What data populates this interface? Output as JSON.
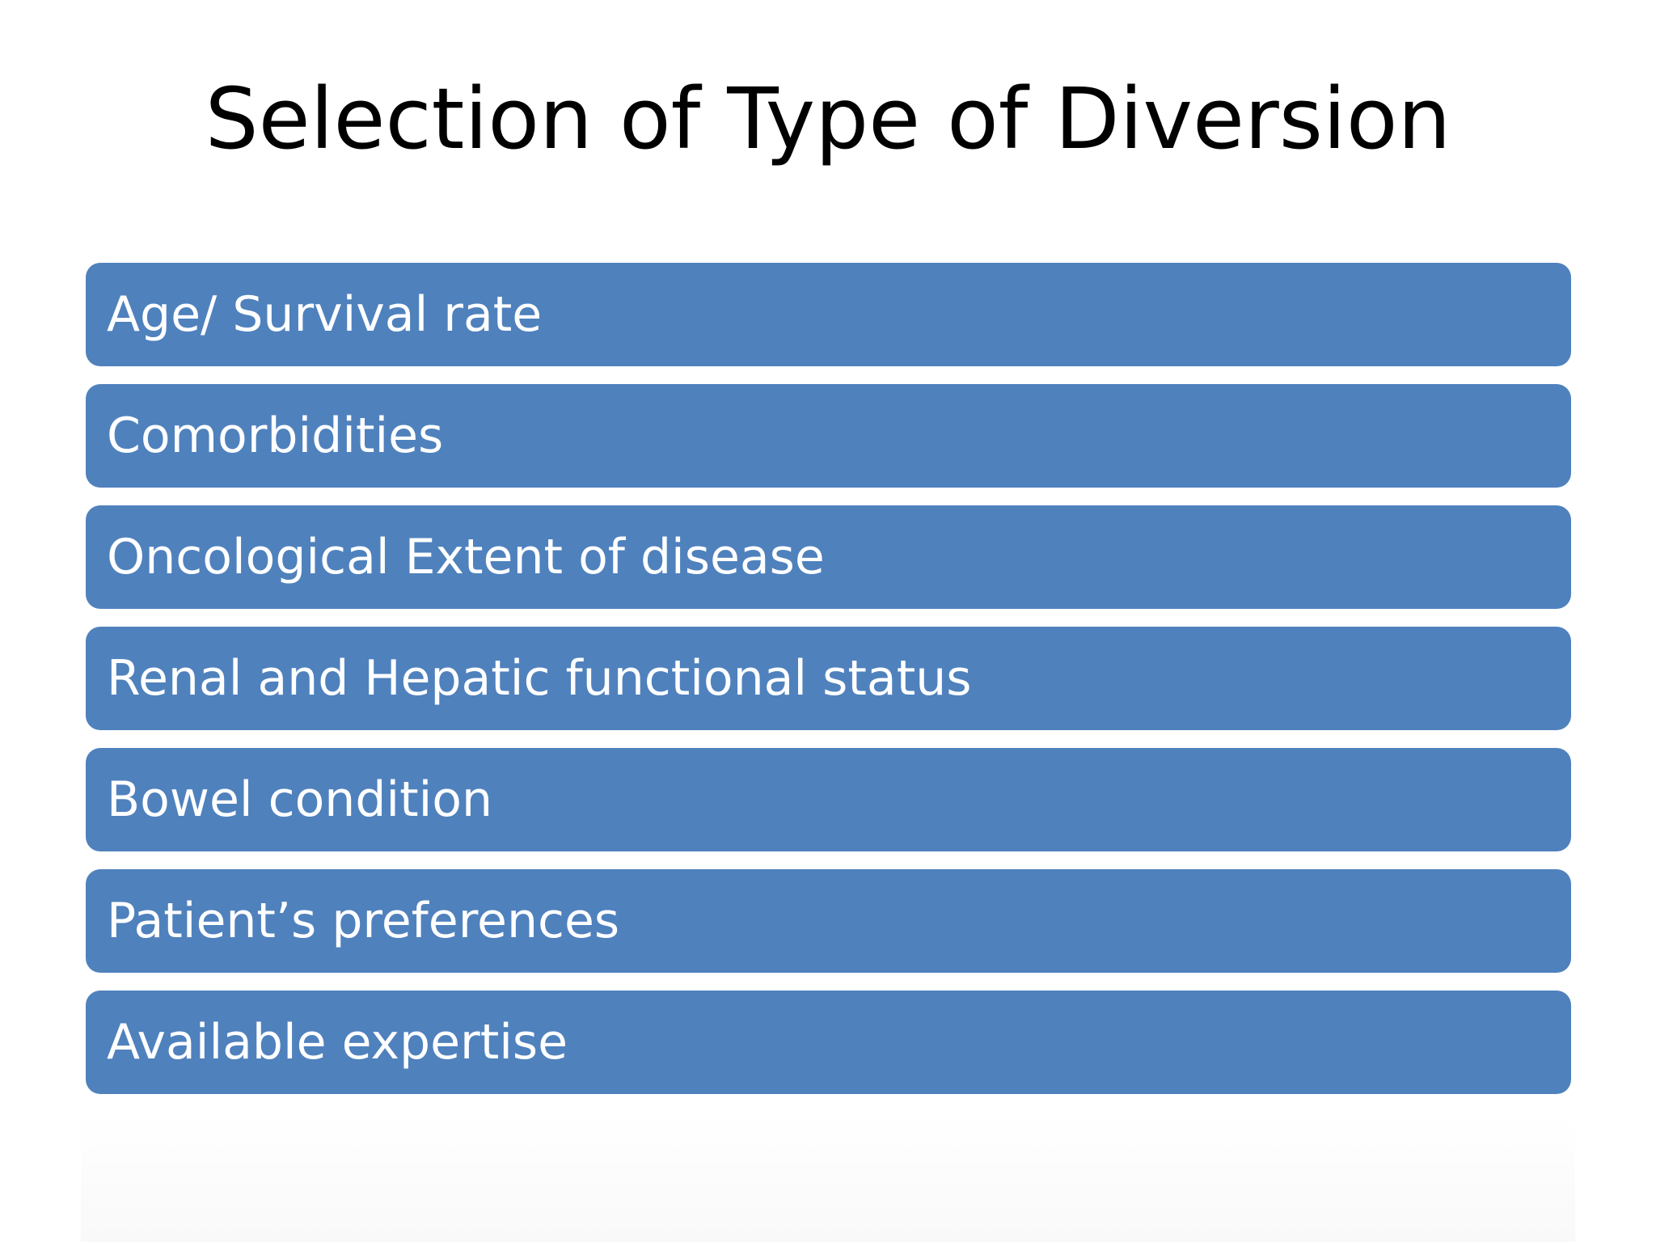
{
  "slide": {
    "title": "Selection of Type of Diversion",
    "items": [
      {
        "label": "Age/ Survival rate"
      },
      {
        "label": "Comorbidities"
      },
      {
        "label": "Oncological Extent of disease"
      },
      {
        "label": "Renal and Hepatic functional status"
      },
      {
        "label": "Bowel condition"
      },
      {
        "label": "Patient’s preferences"
      },
      {
        "label": "Available expertise"
      }
    ]
  },
  "colors": {
    "background": "#ffffff",
    "title_text": "#000000",
    "item_fill": "#4f81bd",
    "item_text": "#ffffff"
  }
}
